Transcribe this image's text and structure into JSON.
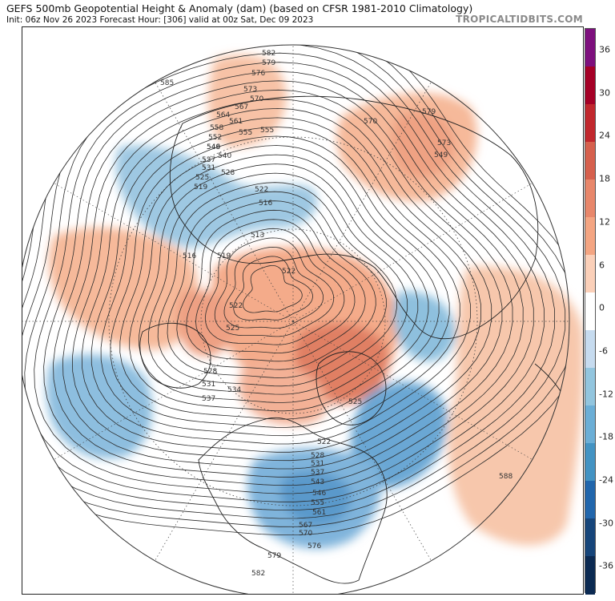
{
  "header": {
    "title": "GEFS 500mb Geopotential Height & Anomaly (dam) (based on CFSR 1981-2010 Climatology)",
    "subtitle": "Init: 06z Nov 26 2023   Forecast Hour: [306]   valid at 00z Sat, Dec 09 2023",
    "brand": "TROPICALTIDBITS.COM"
  },
  "colorbar": {
    "labels": [
      "36",
      "30",
      "24",
      "18",
      "12",
      "6",
      "0",
      "-6",
      "-12",
      "-18",
      "-24",
      "-30",
      "-36"
    ],
    "colors": [
      "#7d0f7d",
      "#a50026",
      "#c1272d",
      "#d6604d",
      "#e8876b",
      "#f4a582",
      "#fbd0b9",
      "#ffffff",
      "#c6dbef",
      "#92c5de",
      "#6baed6",
      "#4393c3",
      "#2166ac",
      "#16457a",
      "#0b2a52"
    ]
  },
  "map": {
    "contour_labels": [
      "582",
      "579",
      "576",
      "573",
      "570",
      "567",
      "564",
      "561",
      "558",
      "555",
      "552",
      "549",
      "546",
      "540",
      "537",
      "534",
      "531",
      "528",
      "525",
      "522",
      "519",
      "516",
      "513",
      "588",
      "585"
    ],
    "label_instances": [
      {
        "id": "l582a",
        "text": "582"
      },
      {
        "id": "l579a",
        "text": "579"
      },
      {
        "id": "l576a",
        "text": "576"
      },
      {
        "id": "l573a",
        "text": "573"
      },
      {
        "id": "l570a",
        "text": "570"
      },
      {
        "id": "l567a",
        "text": "567"
      },
      {
        "id": "l564a",
        "text": "564"
      },
      {
        "id": "l561a",
        "text": "561"
      },
      {
        "id": "l558a",
        "text": "558"
      },
      {
        "id": "l555a",
        "text": "555"
      },
      {
        "id": "l552a",
        "text": "552"
      },
      {
        "id": "l549a",
        "text": "549"
      },
      {
        "id": "l546a",
        "text": "546"
      },
      {
        "id": "l540a",
        "text": "540"
      },
      {
        "id": "l537a",
        "text": "537"
      },
      {
        "id": "l531a",
        "text": "531"
      },
      {
        "id": "l528a",
        "text": "528"
      },
      {
        "id": "l525a",
        "text": "525"
      },
      {
        "id": "l519a",
        "text": "519"
      },
      {
        "id": "l522a",
        "text": "522"
      },
      {
        "id": "l516a",
        "text": "516"
      },
      {
        "id": "l513a",
        "text": "513"
      },
      {
        "id": "l516b",
        "text": "516"
      },
      {
        "id": "l519b",
        "text": "519"
      },
      {
        "id": "l522b",
        "text": "522"
      },
      {
        "id": "l522c",
        "text": "522"
      },
      {
        "id": "l525b",
        "text": "525"
      },
      {
        "id": "l528b",
        "text": "528"
      },
      {
        "id": "l531b",
        "text": "531"
      },
      {
        "id": "l534a",
        "text": "534"
      },
      {
        "id": "l537b",
        "text": "537"
      },
      {
        "id": "l525c",
        "text": "525"
      },
      {
        "id": "l522d",
        "text": "522"
      },
      {
        "id": "l528c",
        "text": "528"
      },
      {
        "id": "l531c",
        "text": "531"
      },
      {
        "id": "l537c",
        "text": "537"
      },
      {
        "id": "l543a",
        "text": "543"
      },
      {
        "id": "l546b",
        "text": "546"
      },
      {
        "id": "l555b",
        "text": "555"
      },
      {
        "id": "l561b",
        "text": "561"
      },
      {
        "id": "l567b",
        "text": "567"
      },
      {
        "id": "l570b",
        "text": "570"
      },
      {
        "id": "l576b",
        "text": "576"
      },
      {
        "id": "l579b",
        "text": "579"
      },
      {
        "id": "l582b",
        "text": "582"
      },
      {
        "id": "l585a",
        "text": "585"
      },
      {
        "id": "l588a",
        "text": "588"
      },
      {
        "id": "l570c",
        "text": "570"
      },
      {
        "id": "l579c",
        "text": "579"
      },
      {
        "id": "l573b",
        "text": "573"
      },
      {
        "id": "l549b",
        "text": "549"
      },
      {
        "id": "l555c",
        "text": "555"
      }
    ]
  }
}
